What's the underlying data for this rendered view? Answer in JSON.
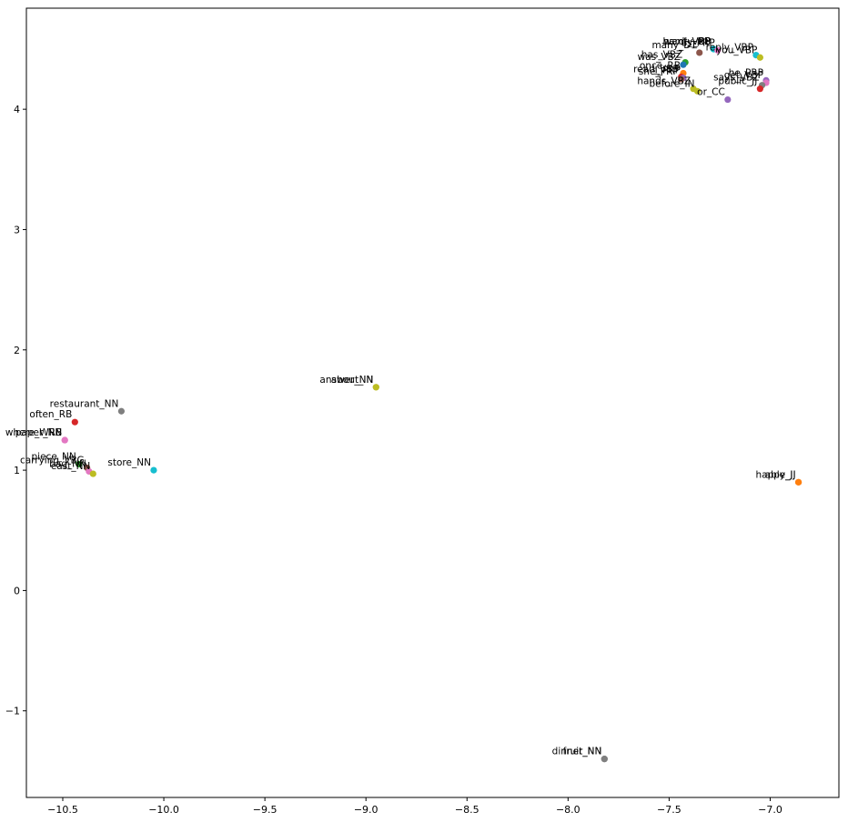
{
  "chart_data": {
    "type": "scatter",
    "title": "",
    "xlabel": "",
    "ylabel": "",
    "xlim": [
      -10.68,
      -6.66
    ],
    "ylim": [
      -1.72,
      4.84
    ],
    "grid": false,
    "legend": "none",
    "x_ticks": [
      -10.5,
      -10.0,
      -9.5,
      -9.0,
      -8.5,
      -8.0,
      -7.5,
      -7.0
    ],
    "x_tick_labels": [
      "−10.5",
      "−10.0",
      "−9.5",
      "−9.0",
      "−8.5",
      "−8.0",
      "−7.5",
      "−7.0"
    ],
    "y_ticks": [
      -1,
      0,
      1,
      2,
      3,
      4
    ],
    "y_tick_labels": [
      "−1",
      "0",
      "1",
      "2",
      "3",
      "4"
    ],
    "points": [
      {
        "x": -10.44,
        "y": 1.4,
        "label": "often_RB",
        "color": "#d62728"
      },
      {
        "x": -10.21,
        "y": 1.49,
        "label": "restaurant_NN",
        "color": "#7f7f7f"
      },
      {
        "x": -10.49,
        "y": 1.25,
        "label": "where_WRB",
        "color": "#e377c2"
      },
      {
        "x": -10.49,
        "y": 1.25,
        "label": "paper_NN",
        "color": "#e377c2"
      },
      {
        "x": -10.42,
        "y": 1.05,
        "label": "piece_NN",
        "color": "#2ca02c"
      },
      {
        "x": -10.38,
        "y": 1.02,
        "label": "carrying_VBG",
        "color": "#8c564b"
      },
      {
        "x": -10.37,
        "y": 0.99,
        "label": "bag_NN",
        "color": "#e377c2"
      },
      {
        "x": -10.35,
        "y": 0.97,
        "label": "east_NN",
        "color": "#bcbd22"
      },
      {
        "x": -10.05,
        "y": 1.0,
        "label": "store_NN",
        "color": "#17becf"
      },
      {
        "x": -8.95,
        "y": 1.69,
        "label": "answer_NN",
        "color": "#bcbd22"
      },
      {
        "x": -8.95,
        "y": 1.69,
        "label": "about_IN",
        "color": "#bcbd22"
      },
      {
        "x": -6.86,
        "y": 0.9,
        "label": "able_JJ",
        "color": "#ff7f0e"
      },
      {
        "x": -6.86,
        "y": 0.9,
        "label": "happy_JJ",
        "color": "#ff7f0e"
      },
      {
        "x": -7.82,
        "y": -1.4,
        "label": "dinner_NN",
        "color": "#7f7f7f"
      },
      {
        "x": -7.82,
        "y": -1.4,
        "label": "fruit_NN",
        "color": "#7f7f7f"
      },
      {
        "x": -7.28,
        "y": 4.5,
        "label": "hardly_RB",
        "color": "#17becf"
      },
      {
        "x": -7.28,
        "y": 4.5,
        "label": "want_VBP",
        "color": "#17becf"
      },
      {
        "x": -7.26,
        "y": 4.49,
        "label": "us_PRP",
        "color": "#e377c2"
      },
      {
        "x": -7.35,
        "y": 4.47,
        "label": "many_DT",
        "color": "#8c564b"
      },
      {
        "x": -7.07,
        "y": 4.45,
        "label": "reply_VBP",
        "color": "#17becf"
      },
      {
        "x": -7.05,
        "y": 4.43,
        "label": "you_VBP",
        "color": "#bcbd22"
      },
      {
        "x": -7.42,
        "y": 4.39,
        "label": "has_VBZ",
        "color": "#2ca02c"
      },
      {
        "x": -7.43,
        "y": 4.37,
        "label": "was_VBZ",
        "color": "#1f77b4"
      },
      {
        "x": -7.43,
        "y": 4.3,
        "label": "once_RB",
        "color": "#ff7f0e"
      },
      {
        "x": -7.44,
        "y": 4.27,
        "label": "read_VBP",
        "color": "#d62728"
      },
      {
        "x": -7.43,
        "y": 4.26,
        "label": "I_PRP",
        "color": "#9467bd"
      },
      {
        "x": -7.44,
        "y": 4.25,
        "label": "she_PRP",
        "color": "#8c564b"
      },
      {
        "x": -7.02,
        "y": 4.24,
        "label": "he_PRP",
        "color": "#9467bd"
      },
      {
        "x": -7.02,
        "y": 4.22,
        "label": "get_VBP",
        "color": "#e377c2"
      },
      {
        "x": -7.04,
        "y": 4.2,
        "label": "says_VBZ",
        "color": "#7f7f7f"
      },
      {
        "x": -7.38,
        "y": 4.17,
        "label": "hands_VBZ",
        "color": "#bcbd22"
      },
      {
        "x": -7.05,
        "y": 4.17,
        "label": "public_JJ",
        "color": "#d62728"
      },
      {
        "x": -7.36,
        "y": 4.15,
        "label": "before_IN",
        "color": "#bcbd22"
      },
      {
        "x": -7.21,
        "y": 4.08,
        "label": "or_CC",
        "color": "#9467bd"
      }
    ]
  }
}
